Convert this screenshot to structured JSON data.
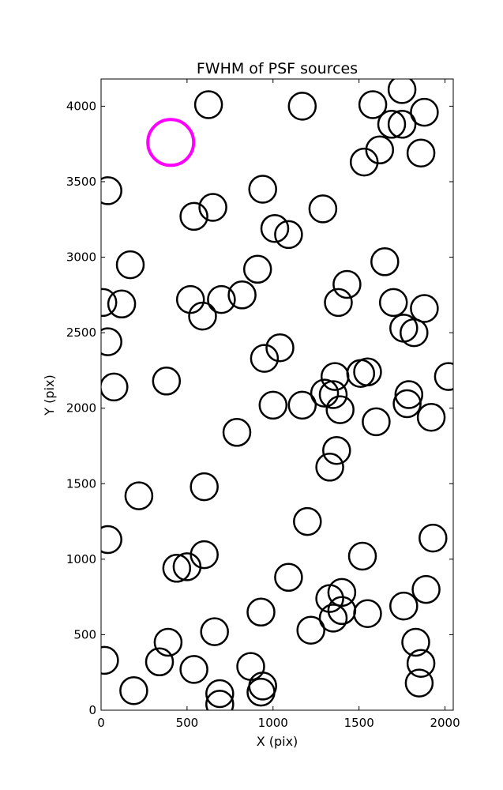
{
  "chart_data": {
    "type": "scatter",
    "title": "FWHM of PSF sources",
    "xlabel": "X (pix)",
    "ylabel": "Y (pix)",
    "xlim": [
      0,
      2048
    ],
    "ylim": [
      0,
      4180
    ],
    "xticks": [
      0,
      500,
      1000,
      1500,
      2000
    ],
    "yticks": [
      0,
      500,
      1000,
      1500,
      2000,
      2500,
      3000,
      3500,
      4000
    ],
    "grid": false,
    "marker": "open circle",
    "series": [
      {
        "color": "#000000",
        "points": [
          {
            "x": 625,
            "y": 4010
          },
          {
            "x": 1170,
            "y": 4000
          },
          {
            "x": 1580,
            "y": 4010
          },
          {
            "x": 1750,
            "y": 4110
          },
          {
            "x": 1880,
            "y": 3960
          },
          {
            "x": 1690,
            "y": 3880
          },
          {
            "x": 1750,
            "y": 3880
          },
          {
            "x": 1620,
            "y": 3710
          },
          {
            "x": 1530,
            "y": 3630
          },
          {
            "x": 1860,
            "y": 3690
          },
          {
            "x": 40,
            "y": 3440
          },
          {
            "x": 940,
            "y": 3450
          },
          {
            "x": 1290,
            "y": 3320
          },
          {
            "x": 540,
            "y": 3270
          },
          {
            "x": 650,
            "y": 3330
          },
          {
            "x": 1010,
            "y": 3190
          },
          {
            "x": 1090,
            "y": 3150
          },
          {
            "x": 170,
            "y": 2950
          },
          {
            "x": 1650,
            "y": 2970
          },
          {
            "x": 910,
            "y": 2920
          },
          {
            "x": 10,
            "y": 2700
          },
          {
            "x": 120,
            "y": 2690
          },
          {
            "x": 520,
            "y": 2720
          },
          {
            "x": 700,
            "y": 2720
          },
          {
            "x": 820,
            "y": 2750
          },
          {
            "x": 590,
            "y": 2610
          },
          {
            "x": 1430,
            "y": 2820
          },
          {
            "x": 1380,
            "y": 2700
          },
          {
            "x": 1700,
            "y": 2700
          },
          {
            "x": 1880,
            "y": 2660
          },
          {
            "x": 1760,
            "y": 2530
          },
          {
            "x": 1820,
            "y": 2500
          },
          {
            "x": 40,
            "y": 2440
          },
          {
            "x": 1040,
            "y": 2400
          },
          {
            "x": 950,
            "y": 2330
          },
          {
            "x": 1360,
            "y": 2210
          },
          {
            "x": 1510,
            "y": 2230
          },
          {
            "x": 1550,
            "y": 2240
          },
          {
            "x": 2020,
            "y": 2210
          },
          {
            "x": 75,
            "y": 2140
          },
          {
            "x": 380,
            "y": 2180
          },
          {
            "x": 1300,
            "y": 2100
          },
          {
            "x": 1350,
            "y": 2090
          },
          {
            "x": 1790,
            "y": 2090
          },
          {
            "x": 1000,
            "y": 2020
          },
          {
            "x": 1170,
            "y": 2020
          },
          {
            "x": 1390,
            "y": 1990
          },
          {
            "x": 1780,
            "y": 2030
          },
          {
            "x": 1600,
            "y": 1910
          },
          {
            "x": 1920,
            "y": 1940
          },
          {
            "x": 790,
            "y": 1840
          },
          {
            "x": 1370,
            "y": 1720
          },
          {
            "x": 1330,
            "y": 1610
          },
          {
            "x": 600,
            "y": 1480
          },
          {
            "x": 220,
            "y": 1420
          },
          {
            "x": 1200,
            "y": 1250
          },
          {
            "x": 40,
            "y": 1130
          },
          {
            "x": 1930,
            "y": 1140
          },
          {
            "x": 600,
            "y": 1030
          },
          {
            "x": 1520,
            "y": 1020
          },
          {
            "x": 440,
            "y": 940
          },
          {
            "x": 500,
            "y": 950
          },
          {
            "x": 1090,
            "y": 880
          },
          {
            "x": 1400,
            "y": 780
          },
          {
            "x": 1330,
            "y": 740
          },
          {
            "x": 1760,
            "y": 690
          },
          {
            "x": 1890,
            "y": 800
          },
          {
            "x": 930,
            "y": 650
          },
          {
            "x": 1400,
            "y": 660
          },
          {
            "x": 1350,
            "y": 610
          },
          {
            "x": 1550,
            "y": 640
          },
          {
            "x": 660,
            "y": 520
          },
          {
            "x": 1220,
            "y": 530
          },
          {
            "x": 390,
            "y": 450
          },
          {
            "x": 1830,
            "y": 450
          },
          {
            "x": 20,
            "y": 330
          },
          {
            "x": 340,
            "y": 320
          },
          {
            "x": 540,
            "y": 270
          },
          {
            "x": 870,
            "y": 290
          },
          {
            "x": 1860,
            "y": 310
          },
          {
            "x": 190,
            "y": 130
          },
          {
            "x": 690,
            "y": 110
          },
          {
            "x": 940,
            "y": 160
          },
          {
            "x": 930,
            "y": 120
          },
          {
            "x": 1850,
            "y": 180
          },
          {
            "x": 690,
            "y": 40
          }
        ]
      },
      {
        "color": "#ff00ff",
        "points": [
          {
            "x": 405,
            "y": 3760
          }
        ]
      }
    ]
  }
}
